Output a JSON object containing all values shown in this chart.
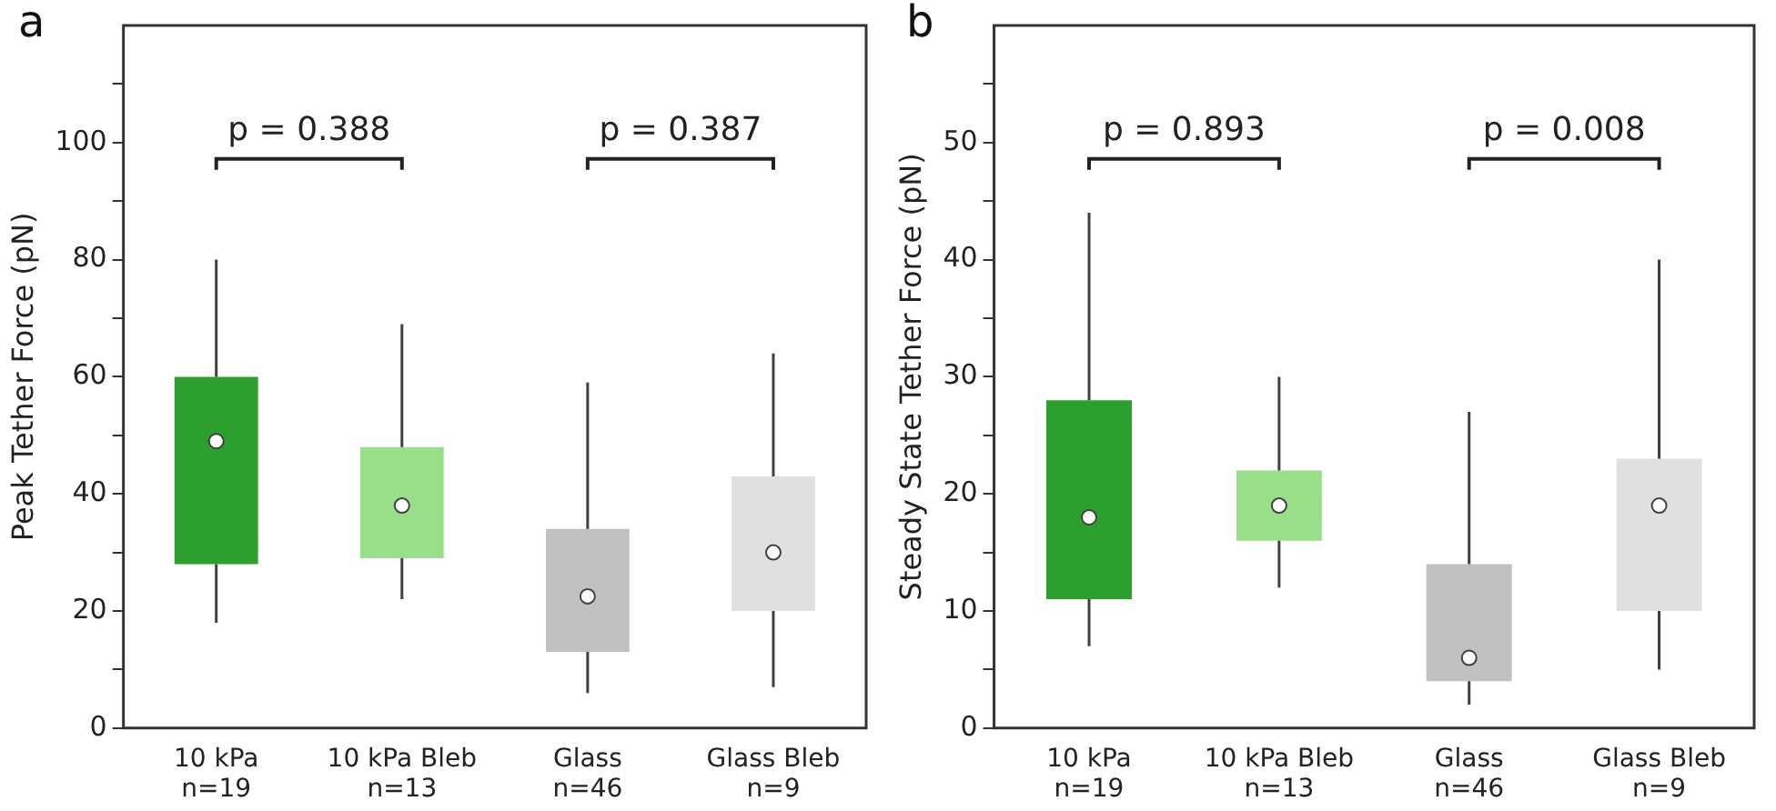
{
  "chart_data": [
    {
      "type": "box",
      "title": "a",
      "ylabel": "Peak Tether Force (pN)",
      "categories": [
        "10 kPa\nn=19",
        "10 kPa Bleb\nn=13",
        "Glass\nn=46",
        "Glass Bleb\nn=9"
      ],
      "colors": [
        "#2ca02c",
        "#98df8a",
        "#c0c0c0",
        "#e0e0e0"
      ],
      "boxes": [
        {
          "low": 18,
          "q1": 28,
          "median": 49,
          "q3": 60,
          "high": 80
        },
        {
          "low": 22,
          "q1": 29,
          "median": 38,
          "q3": 48,
          "high": 69
        },
        {
          "low": 6,
          "q1": 13,
          "median": 22.5,
          "q3": 34,
          "high": 59
        },
        {
          "low": 7,
          "q1": 20,
          "median": 30,
          "q3": 43,
          "high": 64
        }
      ],
      "ylim": [
        0,
        120
      ],
      "yticks": [
        0,
        {
          "value": 10,
          "label": null
        },
        20,
        {
          "value": 30,
          "label": null
        },
        40,
        {
          "value": 50,
          "label": null
        },
        60,
        {
          "value": 70,
          "label": null
        },
        80,
        {
          "value": 90,
          "label": null
        },
        100,
        {
          "value": 110,
          "label": null
        }
      ],
      "annotations": [
        "p = 0.388",
        "p = 0.387"
      ],
      "grid": false,
      "legend": false
    },
    {
      "type": "box",
      "title": "b",
      "ylabel": "Steady State Tether Force (pN)",
      "categories": [
        "10 kPa\nn=19",
        "10 kPa Bleb\nn=13",
        "Glass\nn=46",
        "Glass Bleb\nn=9"
      ],
      "colors": [
        "#2ca02c",
        "#98df8a",
        "#c0c0c0",
        "#e0e0e0"
      ],
      "boxes": [
        {
          "low": 7,
          "q1": 11,
          "median": 18,
          "q3": 28,
          "high": 44
        },
        {
          "low": 12,
          "q1": 16,
          "median": 19,
          "q3": 22,
          "high": 30
        },
        {
          "low": 2,
          "q1": 4,
          "median": 6,
          "q3": 14,
          "high": 27
        },
        {
          "low": 5,
          "q1": 10,
          "median": 19,
          "q3": 23,
          "high": 40
        }
      ],
      "ylim": [
        0,
        60
      ],
      "yticks": [
        0,
        {
          "value": 5,
          "label": null
        },
        10,
        {
          "value": 15,
          "label": null
        },
        20,
        {
          "value": 25,
          "label": null
        },
        30,
        {
          "value": 35,
          "label": null
        },
        40,
        {
          "value": 45,
          "label": null
        },
        50,
        {
          "value": 55,
          "label": null
        }
      ],
      "annotations": [
        "p = 0.893",
        "p = 0.008"
      ],
      "grid": false,
      "legend": false
    }
  ]
}
